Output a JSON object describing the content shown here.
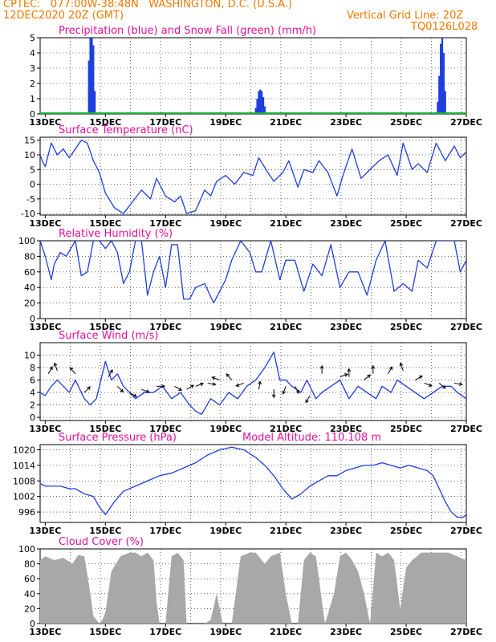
{
  "header": {
    "line1_left": "CPTEC:   077:00W-38:48N   WASHINGTON, D.C. (U.S.A.)",
    "line2_left": "12DEC2020 20Z (GMT)",
    "line2_right": "Vertical Grid Line: 20Z",
    "code": "TQ0126L028"
  },
  "colors": {
    "header": "#f07800",
    "panel_title": "#e0109a",
    "series_line": "#1f3ee0",
    "precip_bar": "#1f3ee0",
    "snow_line": "#19b23a",
    "cloud_fill": "#a8a8a8",
    "axis": "#000000"
  },
  "x_axis": {
    "tick_labels": [
      "13DEC",
      "15DEC",
      "17DEC",
      "19DEC",
      "21DEC",
      "23DEC",
      "25DEC",
      "27DEC"
    ],
    "tick_days": [
      13,
      15,
      17,
      19,
      21,
      23,
      25,
      27
    ],
    "range_days": [
      12.83,
      27.0
    ]
  },
  "chart_data": [
    {
      "id": "precip",
      "type": "bar",
      "title": "Precipitation (blue) and Snow Fall (green) (mm/h)",
      "ylim": [
        0,
        5
      ],
      "yticks": [
        0,
        1,
        2,
        3,
        4,
        5
      ],
      "precip_points": [
        [
          14.45,
          3.5
        ],
        [
          14.5,
          5.0
        ],
        [
          14.55,
          5.0
        ],
        [
          14.6,
          4.5
        ],
        [
          14.65,
          1.5
        ],
        [
          20.0,
          0.4
        ],
        [
          20.05,
          1.0
        ],
        [
          20.1,
          1.5
        ],
        [
          20.15,
          1.6
        ],
        [
          20.2,
          1.5
        ],
        [
          20.25,
          1.1
        ],
        [
          20.3,
          0.5
        ],
        [
          26.05,
          0.8
        ],
        [
          26.1,
          2.5
        ],
        [
          26.15,
          4.6
        ],
        [
          26.2,
          5.0
        ],
        [
          26.25,
          4.0
        ],
        [
          26.3,
          1.5
        ]
      ],
      "snow_points": [
        [
          12.83,
          0.05
        ],
        [
          27.0,
          0.05
        ]
      ]
    },
    {
      "id": "temperature",
      "type": "line",
      "title": "Surface Temperature (nC)",
      "ylim": [
        -10.5,
        16
      ],
      "yticks": [
        -10,
        -5,
        0,
        5,
        10,
        15
      ],
      "x": [
        12.83,
        12.9,
        13.0,
        13.2,
        13.3,
        13.4,
        13.6,
        13.8,
        14.0,
        14.2,
        14.4,
        14.6,
        14.8,
        15.0,
        15.3,
        15.6,
        15.9,
        16.2,
        16.5,
        16.7,
        17.0,
        17.3,
        17.5,
        17.7,
        18.0,
        18.3,
        18.5,
        18.7,
        19.0,
        19.3,
        19.6,
        19.9,
        20.1,
        20.4,
        20.6,
        20.9,
        21.1,
        21.4,
        21.6,
        21.9,
        22.1,
        22.4,
        22.7,
        22.9,
        23.2,
        23.5,
        23.8,
        24.1,
        24.4,
        24.7,
        24.9,
        25.2,
        25.4,
        25.7,
        26.0,
        26.3,
        26.6,
        26.8,
        27.0
      ],
      "y": [
        10,
        8,
        6,
        14,
        12,
        10,
        12,
        9,
        12,
        15,
        14,
        8,
        4,
        -3,
        -8,
        -10,
        -6,
        -2,
        -5,
        2,
        -4,
        -6,
        -4,
        -10,
        -9,
        -2,
        -4,
        1,
        3,
        0,
        4,
        3,
        9,
        4,
        1,
        4,
        8,
        -1,
        5,
        4,
        8,
        4,
        -4,
        3,
        12,
        2,
        5,
        8,
        10,
        3,
        14,
        5,
        7,
        4,
        14,
        8,
        13,
        9,
        11
      ]
    },
    {
      "id": "humidity",
      "type": "line",
      "title": "Relative Humidity (%)",
      "ylim": [
        0,
        100
      ],
      "yticks": [
        0,
        20,
        40,
        60,
        80,
        100
      ],
      "x": [
        12.83,
        13.0,
        13.2,
        13.3,
        13.5,
        13.7,
        14.0,
        14.2,
        14.4,
        14.6,
        14.8,
        15.0,
        15.2,
        15.4,
        15.6,
        15.8,
        16.0,
        16.2,
        16.4,
        16.6,
        16.8,
        17.0,
        17.2,
        17.4,
        17.6,
        17.8,
        18.0,
        18.3,
        18.6,
        18.8,
        19.0,
        19.2,
        19.5,
        19.8,
        20.0,
        20.2,
        20.5,
        20.8,
        21.0,
        21.3,
        21.6,
        21.9,
        22.2,
        22.5,
        22.8,
        23.1,
        23.4,
        23.7,
        24.0,
        24.3,
        24.6,
        24.9,
        25.2,
        25.4,
        25.7,
        26.0,
        26.3,
        26.6,
        26.8,
        27.0
      ],
      "y": [
        100,
        80,
        50,
        70,
        85,
        80,
        100,
        55,
        60,
        100,
        100,
        90,
        100,
        85,
        45,
        60,
        100,
        100,
        30,
        60,
        80,
        40,
        95,
        95,
        25,
        25,
        40,
        45,
        20,
        35,
        50,
        75,
        100,
        85,
        60,
        60,
        100,
        50,
        75,
        75,
        35,
        70,
        55,
        95,
        40,
        60,
        60,
        30,
        75,
        100,
        35,
        45,
        35,
        75,
        65,
        100,
        100,
        100,
        60,
        75
      ]
    },
    {
      "id": "wind",
      "type": "line",
      "title": "Surface Wind (m/s)",
      "ylim": [
        -0.5,
        12
      ],
      "yticks": [
        0,
        2,
        4,
        6,
        8,
        10
      ],
      "x": [
        12.83,
        13.0,
        13.2,
        13.4,
        13.6,
        13.8,
        14.0,
        14.2,
        14.3,
        14.5,
        14.7,
        14.9,
        15.0,
        15.2,
        15.4,
        15.6,
        15.8,
        16.0,
        16.3,
        16.6,
        16.9,
        17.2,
        17.5,
        17.8,
        18.0,
        18.2,
        18.5,
        18.8,
        19.1,
        19.4,
        19.7,
        20.0,
        20.3,
        20.6,
        20.8,
        21.0,
        21.2,
        21.5,
        21.7,
        22.0,
        22.2,
        22.5,
        22.8,
        23.1,
        23.4,
        23.7,
        24.0,
        24.2,
        24.5,
        24.7,
        25.0,
        25.3,
        25.6,
        25.9,
        26.2,
        26.5,
        26.7,
        27.0
      ],
      "y": [
        4,
        3.5,
        5,
        6,
        5,
        4,
        6,
        4,
        3,
        2,
        3,
        7,
        9,
        6,
        7,
        5,
        4,
        3,
        4,
        4,
        5,
        3,
        4,
        2,
        1,
        0.5,
        3,
        2,
        4,
        3,
        5,
        6,
        8,
        10.5,
        6,
        6,
        5,
        4,
        6,
        3,
        4,
        5,
        6,
        3,
        5,
        4,
        3,
        5,
        4,
        6,
        5,
        4,
        3,
        4,
        5,
        5,
        4,
        3
      ]
    },
    {
      "id": "pressure",
      "type": "line",
      "title": "Surface Pressure (hPa)",
      "annotation": "Model Altitude: 110.108 m",
      "ylim": [
        992,
        1022
      ],
      "yticks": [
        996,
        1002,
        1008,
        1014,
        1020
      ],
      "x": [
        12.83,
        13.0,
        13.2,
        13.5,
        13.8,
        14.0,
        14.3,
        14.6,
        14.8,
        15.0,
        15.3,
        15.6,
        16.0,
        16.4,
        16.8,
        17.2,
        17.6,
        18.0,
        18.4,
        18.8,
        19.2,
        19.6,
        20.0,
        20.3,
        20.6,
        20.9,
        21.2,
        21.5,
        21.8,
        22.1,
        22.4,
        22.7,
        23.0,
        23.3,
        23.6,
        23.9,
        24.2,
        24.5,
        24.8,
        25.1,
        25.4,
        25.7,
        25.9,
        26.1,
        26.3,
        26.5,
        26.7,
        26.9,
        27.0
      ],
      "y": [
        1007,
        1006,
        1006,
        1006,
        1005,
        1005,
        1003,
        1002,
        998,
        995,
        1000,
        1004,
        1006,
        1008,
        1010,
        1011,
        1013,
        1015,
        1018,
        1020,
        1021,
        1020,
        1017,
        1014,
        1010,
        1005,
        1001,
        1003,
        1006,
        1008,
        1010,
        1010,
        1012,
        1013,
        1014,
        1014,
        1015,
        1014,
        1013,
        1014,
        1013,
        1012,
        1010,
        1005,
        1000,
        996,
        994,
        994,
        995
      ]
    },
    {
      "id": "cloud",
      "type": "area",
      "title": "Cloud Cover (%)",
      "ylim": [
        0,
        100
      ],
      "yticks": [
        0,
        20,
        40,
        60,
        80,
        100
      ],
      "x": [
        12.83,
        13.0,
        13.3,
        13.6,
        13.9,
        14.1,
        14.3,
        14.5,
        14.6,
        14.7,
        14.8,
        14.9,
        15.0,
        15.2,
        15.5,
        15.8,
        16.0,
        16.2,
        16.4,
        16.6,
        16.7,
        16.8,
        16.9,
        17.0,
        17.2,
        17.4,
        17.6,
        17.7,
        18.0,
        18.3,
        18.5,
        18.7,
        18.9,
        19.2,
        19.5,
        19.8,
        20.0,
        20.3,
        20.5,
        20.8,
        21.0,
        21.2,
        21.4,
        21.6,
        21.8,
        22.0,
        22.3,
        22.6,
        22.8,
        23.0,
        23.2,
        23.4,
        23.6,
        23.8,
        24.0,
        24.2,
        24.4,
        24.6,
        24.8,
        25.0,
        25.2,
        25.5,
        25.8,
        26.1,
        26.4,
        26.7,
        27.0
      ],
      "y": [
        85,
        90,
        85,
        88,
        80,
        92,
        90,
        40,
        10,
        5,
        0,
        5,
        15,
        70,
        90,
        95,
        95,
        90,
        95,
        85,
        30,
        0,
        0,
        0,
        90,
        95,
        85,
        0,
        0,
        0,
        5,
        40,
        0,
        0,
        90,
        95,
        95,
        80,
        90,
        95,
        40,
        0,
        0,
        85,
        95,
        90,
        0,
        40,
        90,
        95,
        85,
        70,
        40,
        0,
        95,
        90,
        95,
        85,
        20,
        75,
        85,
        95,
        95,
        95,
        95,
        90,
        85
      ]
    }
  ]
}
